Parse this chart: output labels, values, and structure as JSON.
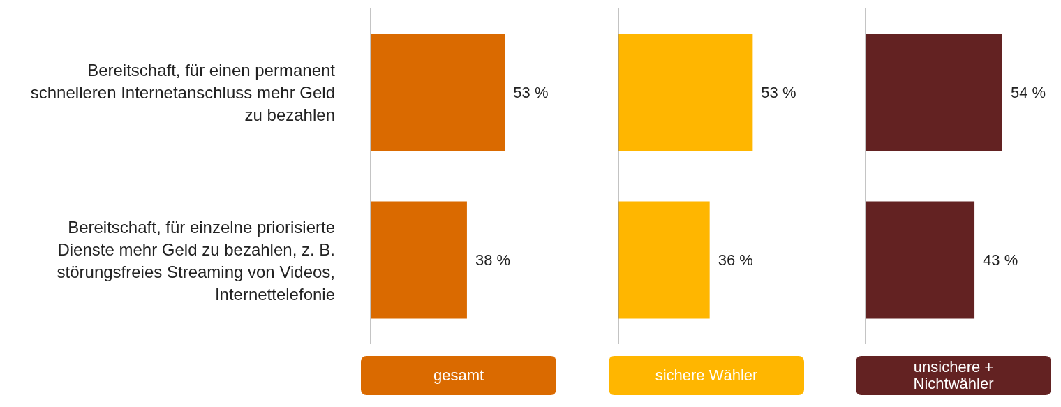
{
  "chart_data": [
    {
      "type": "bar",
      "orientation": "horizontal",
      "categories": [
        "Bereitschaft, für einen permanent schnelleren Internetanschluss mehr Geld zu bezahlen",
        "Bereitschaft, für einzelne priorisierte Dienste mehr Geld zu bezahlen, z. B. störungsfreies Streaming von Videos, Internettelefonie"
      ],
      "series": [
        {
          "name": "gesamt",
          "color": "#da6a00",
          "values": [
            53,
            38
          ],
          "value_labels": [
            "53 %",
            "38 %"
          ]
        }
      ],
      "legend": "bottom",
      "tick_labels": "y"
    },
    {
      "type": "bar",
      "orientation": "horizontal",
      "series": [
        {
          "name": "sichere Wähler",
          "color": "#ffb600",
          "values": [
            53,
            36
          ],
          "value_labels": [
            "53 %",
            "36 %"
          ]
        }
      ],
      "legend": "bottom",
      "tick_labels": false
    },
    {
      "type": "bar",
      "orientation": "horizontal",
      "series": [
        {
          "name": "unsichere + Nichtwähler",
          "color": "#632222",
          "values": [
            54,
            43
          ],
          "value_labels": [
            "54 %",
            "43 %"
          ]
        }
      ],
      "legend": "bottom",
      "tick_labels": false
    }
  ]
}
